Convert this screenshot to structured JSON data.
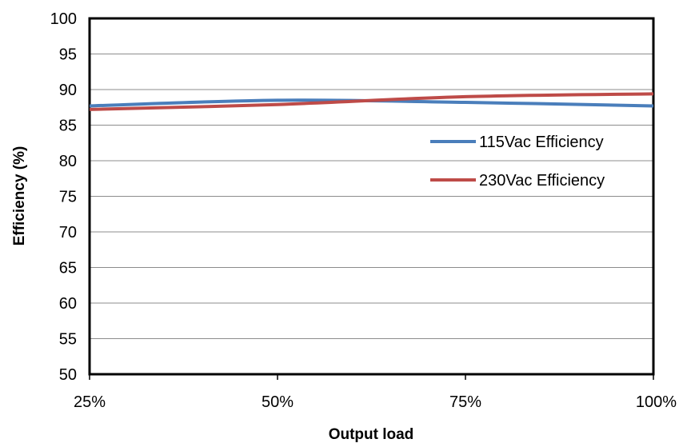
{
  "chart_data": {
    "type": "line",
    "categories": [
      "25%",
      "50%",
      "75%",
      "100%"
    ],
    "xlabel": "Output load",
    "ylabel": "Efficiency (%)",
    "ylim": [
      50,
      100
    ],
    "yticks": [
      50,
      55,
      60,
      65,
      70,
      75,
      80,
      85,
      90,
      95,
      100
    ],
    "grid": "horizontal",
    "legend_position": "right",
    "series": [
      {
        "name": "115Vac Efficiency",
        "color": "#4a7ebb",
        "values": [
          87.7,
          88.5,
          88.2,
          87.7
        ]
      },
      {
        "name": "230Vac Efficiency",
        "color": "#be4b48",
        "values": [
          87.2,
          87.9,
          89.0,
          89.4
        ]
      }
    ]
  }
}
